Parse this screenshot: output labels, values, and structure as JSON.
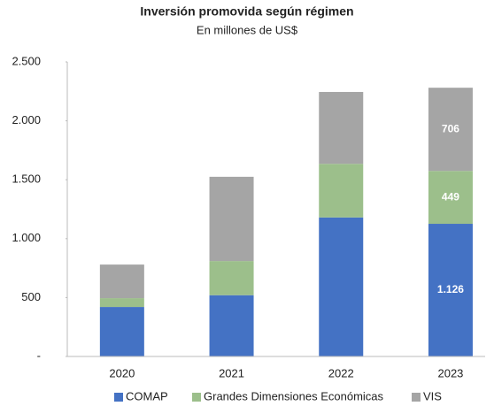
{
  "chart_data": {
    "type": "stacked_bar",
    "title": "Inversión promovida según régimen",
    "subtitle": "En millones de US$",
    "categories": [
      "2020",
      "2021",
      "2022",
      "2023"
    ],
    "series": [
      {
        "name": "COMAP",
        "color": "#4472c4",
        "values": [
          420,
          520,
          1180,
          1126
        ],
        "value_labels": [
          null,
          null,
          null,
          "1.126"
        ]
      },
      {
        "name": "Grandes Dimensiones Económicas",
        "color": "#9cbf8b",
        "values": [
          75,
          290,
          455,
          449
        ],
        "value_labels": [
          null,
          null,
          null,
          "449"
        ]
      },
      {
        "name": "VIS",
        "color": "#a5a5a5",
        "values": [
          285,
          715,
          610,
          706
        ],
        "value_labels": [
          null,
          null,
          null,
          "706"
        ]
      }
    ],
    "ylim": [
      0,
      2500
    ],
    "yticks": [
      {
        "value": 0,
        "label": "-"
      },
      500,
      {
        "value": 1000,
        "label": "1.000"
      },
      {
        "value": 1500,
        "label": "1.500"
      },
      {
        "value": 2000,
        "label": "2.000"
      },
      {
        "value": 2500,
        "label": "2.500"
      }
    ],
    "legend": "bottom"
  }
}
